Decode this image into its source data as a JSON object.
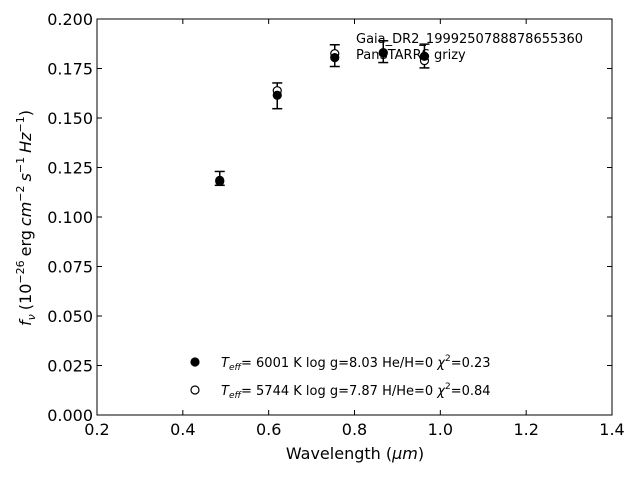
{
  "chart_data": {
    "type": "scatter",
    "xlabel_main": "Wavelength (",
    "xlabel_unit": "μm",
    "xlabel_close": ")",
    "ylabel_parts": {
      "f": "f",
      "nu": "ν",
      "open": "(10",
      "exp1": "−26",
      "erg": "erg",
      "cm": "cm",
      "exp2": "−2",
      "s": "s",
      "exp3": "−1",
      "hz": "Hz",
      "exp4": "−1",
      "close": ")"
    },
    "xlim": [
      0.2,
      1.4
    ],
    "ylim": [
      0.0,
      0.2
    ],
    "xticks": [
      "0.2",
      "0.4",
      "0.6",
      "0.8",
      "1.0",
      "1.2",
      "1.4"
    ],
    "yticks": [
      "0.000",
      "0.025",
      "0.050",
      "0.075",
      "0.100",
      "0.125",
      "0.150",
      "0.175",
      "0.200"
    ],
    "grid": false,
    "annotations": [
      "Gaia_DR2_1999250788878655360",
      "PanSTARRS grizy"
    ],
    "observed": {
      "x": [
        0.486,
        0.62,
        0.754,
        0.867,
        0.963
      ],
      "y": [
        0.1195,
        0.1612,
        0.1815,
        0.1835,
        0.1813
      ],
      "yerr": [
        0.0035,
        0.0065,
        0.0055,
        0.0055,
        0.006
      ]
    },
    "series": [
      {
        "marker": "filled",
        "x": [
          0.486,
          0.62,
          0.754,
          0.867,
          0.963
        ],
        "y": [
          0.1185,
          0.1615,
          0.1805,
          0.1828,
          0.1812
        ],
        "legend": {
          "teff_label": "T",
          "teff_sub": "eff",
          "rest": "=  6001 K  log g=8.03  He/H=0  ",
          "chi": "χ",
          "chi_sup": "2",
          "chi_val": "=0.23"
        }
      },
      {
        "marker": "open",
        "x": [
          0.486,
          0.62,
          0.754,
          0.867,
          0.963
        ],
        "y": [
          0.118,
          0.1638,
          0.1825,
          0.183,
          0.179
        ],
        "legend": {
          "teff_label": "T",
          "teff_sub": "eff",
          "rest": "=  5744 K  log g=7.87  H/He=0  ",
          "chi": "χ",
          "chi_sup": "2",
          "chi_val": "=0.84"
        }
      }
    ]
  }
}
